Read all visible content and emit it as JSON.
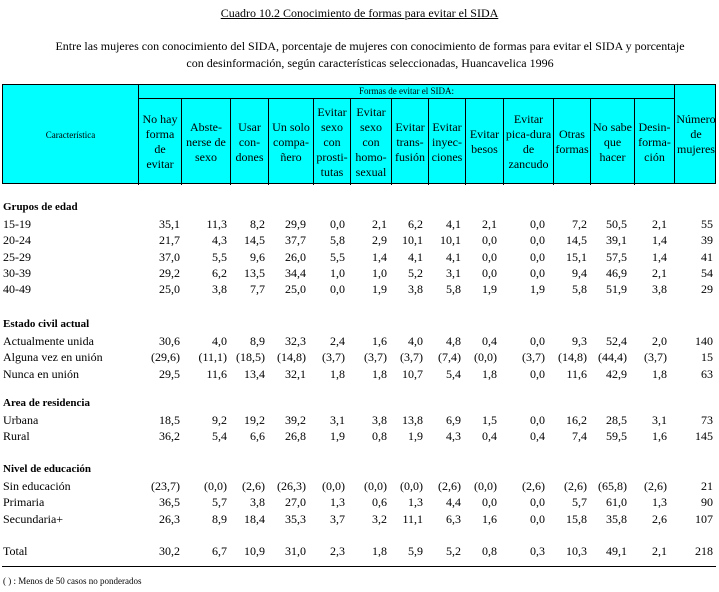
{
  "title": "Cuadro 10.2  Conocimiento de formas para evitar el SIDA",
  "subtitle_line1": "Entre las mujeres con conocimiento del SIDA, porcentaje de mujeres con conocimiento de formas para evitar  el SIDA y porcentaje",
  "subtitle_line2": "con desinformación, según características seleccionadas, Huancavelica 1996",
  "header": {
    "characteristic": "Característica",
    "group": "Formas de evitar el SIDA:",
    "last": [
      "Número",
      "de",
      "mujeres"
    ],
    "columns": [
      [
        "No hay",
        "forma de",
        "evitar"
      ],
      [
        "Abste-",
        "nerse de",
        "sexo"
      ],
      [
        "Usar",
        "con-",
        "dones"
      ],
      [
        "Un solo",
        "compa-",
        "ñero"
      ],
      [
        "Evitar",
        "sexo",
        "con",
        "prosti-",
        "tutas"
      ],
      [
        "Evitar",
        "sexo",
        "con",
        "homo-",
        "sexual"
      ],
      [
        "Evitar",
        "trans-",
        "fusión"
      ],
      [
        "Evitar",
        "inyec-",
        "ciones"
      ],
      [
        "Evitar",
        "besos"
      ],
      [
        "Evitar",
        "pica-dura",
        "de",
        "zancudo"
      ],
      [
        "Otras",
        "formas"
      ],
      [
        "No sabe",
        "que",
        "hacer"
      ],
      [
        "Desin-",
        "forma-",
        "ción"
      ]
    ]
  },
  "sections": [
    {
      "title": "Grupos de edad",
      "rows": [
        {
          "label": "15-19",
          "values": [
            "35,1",
            "11,3",
            "8,2",
            "29,9",
            "0,0",
            "2,1",
            "6,2",
            "4,1",
            "2,1",
            "0,0",
            "7,2",
            "50,5",
            "2,1",
            "55"
          ]
        },
        {
          "label": "20-24",
          "values": [
            "21,7",
            "4,3",
            "14,5",
            "37,7",
            "5,8",
            "2,9",
            "10,1",
            "10,1",
            "0,0",
            "0,0",
            "14,5",
            "39,1",
            "1,4",
            "39"
          ]
        },
        {
          "label": "25-29",
          "values": [
            "37,0",
            "5,5",
            "9,6",
            "26,0",
            "5,5",
            "1,4",
            "4,1",
            "4,1",
            "0,0",
            "0,0",
            "15,1",
            "57,5",
            "1,4",
            "41"
          ]
        },
        {
          "label": "30-39",
          "values": [
            "29,2",
            "6,2",
            "13,5",
            "34,4",
            "1,0",
            "1,0",
            "5,2",
            "3,1",
            "0,0",
            "0,0",
            "9,4",
            "46,9",
            "2,1",
            "54"
          ]
        },
        {
          "label": "40-49",
          "values": [
            "25,0",
            "3,8",
            "7,7",
            "25,0",
            "0,0",
            "1,9",
            "3,8",
            "5,8",
            "1,9",
            "1,9",
            "5,8",
            "51,9",
            "3,8",
            "29"
          ]
        }
      ]
    },
    {
      "title": "Estado civil actual",
      "rows": [
        {
          "label": "Actualmente unida",
          "values": [
            "30,6",
            "4,0",
            "8,9",
            "32,3",
            "2,4",
            "1,6",
            "4,0",
            "4,8",
            "0,4",
            "0,0",
            "9,3",
            "52,4",
            "2,0",
            "140"
          ]
        },
        {
          "label": "Alguna vez en unión",
          "values": [
            "(29,6)",
            "(11,1)",
            "(18,5)",
            "(14,8)",
            "(3,7)",
            "(3,7)",
            "(3,7)",
            "(7,4)",
            "(0,0)",
            "(3,7)",
            "(14,8)",
            "(44,4)",
            "(3,7)",
            "15"
          ]
        },
        {
          "label": "Nunca en unión",
          "values": [
            "29,5",
            "11,6",
            "13,4",
            "32,1",
            "1,8",
            "1,8",
            "10,7",
            "5,4",
            "1,8",
            "0,0",
            "11,6",
            "42,9",
            "1,8",
            "63"
          ]
        }
      ]
    },
    {
      "title": "Area de residencia",
      "rows": [
        {
          "label": "Urbana",
          "values": [
            "18,5",
            "9,2",
            "19,2",
            "39,2",
            "3,1",
            "3,8",
            "13,8",
            "6,9",
            "1,5",
            "0,0",
            "16,2",
            "28,5",
            "3,1",
            "73"
          ]
        },
        {
          "label": "Rural",
          "values": [
            "36,2",
            "5,4",
            "6,6",
            "26,8",
            "1,9",
            "0,8",
            "1,9",
            "4,3",
            "0,4",
            "0,4",
            "7,4",
            "59,5",
            "1,6",
            "145"
          ]
        }
      ]
    },
    {
      "title": "Nivel de educación",
      "rows": [
        {
          "label": "Sin educación",
          "values": [
            "(23,7)",
            "(0,0)",
            "(2,6)",
            "(26,3)",
            "(0,0)",
            "(0,0)",
            "(0,0)",
            "(2,6)",
            "(0,0)",
            "(2,6)",
            "(2,6)",
            "(65,8)",
            "(2,6)",
            "21"
          ]
        },
        {
          "label": "Primaria",
          "values": [
            "36,5",
            "5,7",
            "3,8",
            "27,0",
            "1,3",
            "0,6",
            "1,3",
            "4,4",
            "0,0",
            "0,0",
            "5,7",
            "61,0",
            "1,3",
            "90"
          ]
        },
        {
          "label": "Secundaria+",
          "values": [
            "26,3",
            "8,9",
            "18,4",
            "35,3",
            "3,7",
            "3,2",
            "11,1",
            "6,3",
            "1,6",
            "0,0",
            "15,8",
            "35,8",
            "2,6",
            "107"
          ]
        }
      ]
    }
  ],
  "total": {
    "label": "Total",
    "values": [
      "30,2",
      "6,7",
      "10,9",
      "31,0",
      "2,3",
      "1,8",
      "5,9",
      "5,2",
      "0,8",
      "0,3",
      "10,3",
      "49,1",
      "2,1",
      "218"
    ]
  },
  "note": "( ) : Menos de 50 casos no ponderados"
}
